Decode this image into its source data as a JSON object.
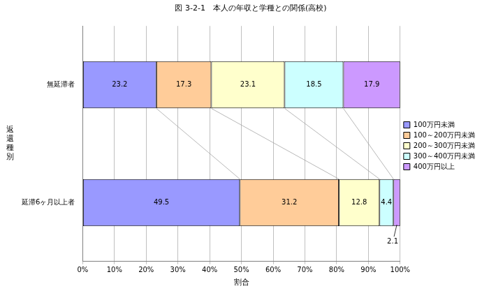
{
  "chart_data": {
    "type": "bar",
    "title": "図 3-2-1　本人の年収と学種との関係(高校)",
    "orientation": "horizontal",
    "stacked": true,
    "data_labels": true,
    "grid": true,
    "legend": "right",
    "x_label": "割合",
    "y_label": "返還種別",
    "categories": [
      "無延滞者",
      "延滞6ヶ月以上者"
    ],
    "series": [
      {
        "name": "100万円未満",
        "color": "#9999ff",
        "values": [
          23.2,
          49.5
        ]
      },
      {
        "name": "100～200万円未満",
        "color": "#ffcc99",
        "values": [
          17.3,
          31.2
        ]
      },
      {
        "name": "200～300万円未満",
        "color": "#ffffcc",
        "values": [
          23.1,
          12.8
        ]
      },
      {
        "name": "300～400万円未満",
        "color": "#ccffff",
        "values": [
          18.5,
          4.4
        ]
      },
      {
        "name": "400万円以上",
        "color": "#cc99ff",
        "values": [
          17.9,
          2.1
        ]
      }
    ],
    "xlim": [
      0,
      100
    ],
    "xticks": [
      {
        "value": 0,
        "label": "0%"
      },
      {
        "value": 10,
        "label": "10%"
      },
      {
        "value": 20,
        "label": "20%"
      },
      {
        "value": 30,
        "label": "30%"
      },
      {
        "value": 40,
        "label": "40%"
      },
      {
        "value": 50,
        "label": "50%"
      },
      {
        "value": 60,
        "label": "60%"
      },
      {
        "value": 70,
        "label": "70%"
      },
      {
        "value": 80,
        "label": "80%"
      },
      {
        "value": 90,
        "label": "90%"
      },
      {
        "value": 100,
        "label": "100%"
      }
    ]
  }
}
